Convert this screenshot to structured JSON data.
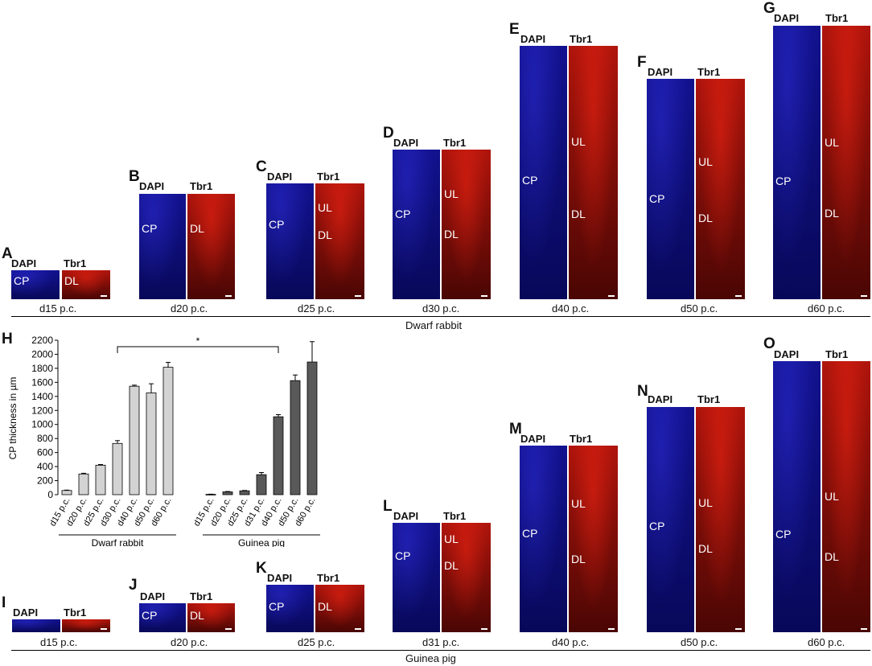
{
  "panels": {
    "A": {
      "letter": "A",
      "dapi": "DAPI",
      "tbr1": "Tbr1",
      "left": "CP",
      "right": "DL",
      "caption": "d15 p.c."
    },
    "B": {
      "letter": "B",
      "dapi": "DAPI",
      "tbr1": "Tbr1",
      "left": "CP",
      "right": "DL",
      "caption": "d20 p.c."
    },
    "C": {
      "letter": "C",
      "dapi": "DAPI",
      "tbr1": "Tbr1",
      "left": "CP",
      "r1": "UL",
      "r2": "DL",
      "caption": "d25 p.c."
    },
    "D": {
      "letter": "D",
      "dapi": "DAPI",
      "tbr1": "Tbr1",
      "left": "CP",
      "r1": "UL",
      "r2": "DL",
      "caption": "d30 p.c."
    },
    "E": {
      "letter": "E",
      "dapi": "DAPI",
      "tbr1": "Tbr1",
      "left": "CP",
      "r1": "UL",
      "r2": "DL",
      "caption": "d40 p.c."
    },
    "F": {
      "letter": "F",
      "dapi": "DAPI",
      "tbr1": "Tbr1",
      "left": "CP",
      "r1": "UL",
      "r2": "DL",
      "caption": "d50 p.c."
    },
    "G": {
      "letter": "G",
      "dapi": "DAPI",
      "tbr1": "Tbr1",
      "left": "CP",
      "r1": "UL",
      "r2": "DL",
      "caption": "d60 p.c."
    },
    "I": {
      "letter": "I",
      "dapi": "DAPI",
      "tbr1": "Tbr1",
      "caption": "d15 p.c."
    },
    "J": {
      "letter": "J",
      "dapi": "DAPI",
      "tbr1": "Tbr1",
      "left": "CP",
      "right": "DL",
      "caption": "d20 p.c."
    },
    "K": {
      "letter": "K",
      "dapi": "DAPI",
      "tbr1": "Tbr1",
      "left": "CP",
      "right": "DL",
      "caption": "d25 p.c."
    },
    "L": {
      "letter": "L",
      "dapi": "DAPI",
      "tbr1": "Tbr1",
      "left": "CP",
      "r1": "UL",
      "r2": "DL",
      "caption": "d31 p.c."
    },
    "M": {
      "letter": "M",
      "dapi": "DAPI",
      "tbr1": "Tbr1",
      "left": "CP",
      "r1": "UL",
      "r2": "DL",
      "caption": "d40 p.c."
    },
    "N": {
      "letter": "N",
      "dapi": "DAPI",
      "tbr1": "Tbr1",
      "left": "CP",
      "r1": "UL",
      "r2": "DL",
      "caption": "d50 p.c."
    },
    "O": {
      "letter": "O",
      "dapi": "DAPI",
      "tbr1": "Tbr1",
      "left": "CP",
      "r1": "UL",
      "r2": "DL",
      "caption": "d60 p.c."
    }
  },
  "top_group_label": "Dwarf rabbit",
  "bottom_group_label": "Guinea pig",
  "chart_letter": "H",
  "colors": {
    "rabbit_bar": "#d3d3d3",
    "guinea_bar": "#595959"
  },
  "chart_data": {
    "type": "bar",
    "title": "",
    "ylabel": "CP thickness in µm",
    "xlabel": "",
    "ylim": [
      0,
      2200
    ],
    "yticks": [
      0,
      200,
      400,
      600,
      800,
      1000,
      1200,
      1400,
      1600,
      1800,
      2000,
      2200
    ],
    "significance": "*",
    "groups": [
      {
        "name": "Dwarf rabbit",
        "categories": [
          "d15 p.c.",
          "d20 p.c.",
          "d25 p.c.",
          "d30 p.c.",
          "d40 p.c.",
          "d50 p.c.",
          "d60 p.c."
        ],
        "values": [
          60,
          295,
          420,
          730,
          1545,
          1450,
          1815
        ],
        "errors": [
          5,
          10,
          10,
          40,
          15,
          130,
          70
        ]
      },
      {
        "name": "Guinea pig",
        "categories": [
          "d15 p.c.",
          "d20 p.c.",
          "d25 p.c.",
          "d31 p.c.",
          "d40 p.c.",
          "d50 p.c.",
          "d60 p.c."
        ],
        "values": [
          5,
          40,
          55,
          285,
          1110,
          1625,
          1890
        ],
        "errors": [
          2,
          5,
          5,
          30,
          30,
          80,
          290
        ]
      }
    ]
  }
}
